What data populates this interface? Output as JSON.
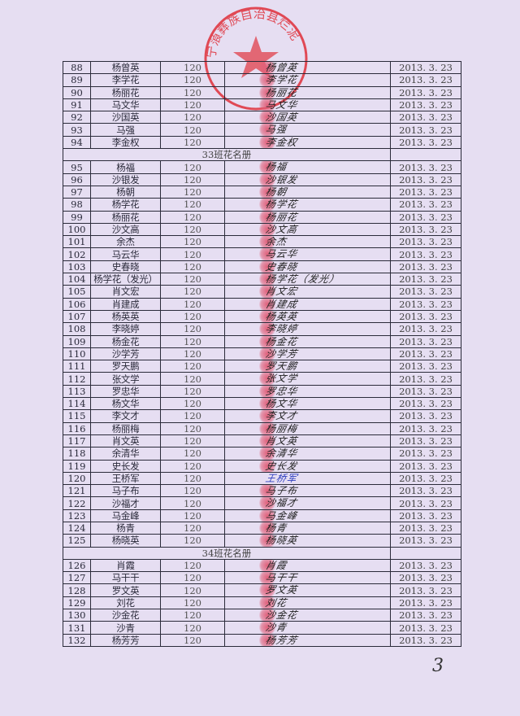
{
  "stamp": {
    "text": "宁蒗彝族自治县烂泥",
    "color": "#e0303a"
  },
  "page_number": "3",
  "amount_default": "120",
  "date_default": "2013. 3. 23",
  "rows": [
    {
      "no": "88",
      "name": "杨曾英"
    },
    {
      "no": "89",
      "name": "李学花"
    },
    {
      "no": "90",
      "name": "杨丽花"
    },
    {
      "no": "91",
      "name": "马文华"
    },
    {
      "no": "92",
      "name": "沙国英"
    },
    {
      "no": "93",
      "name": "马强"
    },
    {
      "no": "94",
      "name": "李金权"
    },
    {
      "section": "33班花名册"
    },
    {
      "no": "95",
      "name": "杨福"
    },
    {
      "no": "96",
      "name": "沙银发"
    },
    {
      "no": "97",
      "name": "杨朝"
    },
    {
      "no": "98",
      "name": "杨学花"
    },
    {
      "no": "99",
      "name": "杨丽花"
    },
    {
      "no": "100",
      "name": "沙文高"
    },
    {
      "no": "101",
      "name": "余杰"
    },
    {
      "no": "102",
      "name": "马云华"
    },
    {
      "no": "103",
      "name": "史春晓"
    },
    {
      "no": "104",
      "name": "杨学花（发光）"
    },
    {
      "no": "105",
      "name": "肖文宏"
    },
    {
      "no": "106",
      "name": "肖建成"
    },
    {
      "no": "107",
      "name": "杨英英"
    },
    {
      "no": "108",
      "name": "李晓婷"
    },
    {
      "no": "109",
      "name": "杨金花"
    },
    {
      "no": "110",
      "name": "沙学芳"
    },
    {
      "no": "111",
      "name": "罗天鹏"
    },
    {
      "no": "112",
      "name": "张文学"
    },
    {
      "no": "113",
      "name": "罗忠华"
    },
    {
      "no": "114",
      "name": "杨文华"
    },
    {
      "no": "115",
      "name": "李文才"
    },
    {
      "no": "116",
      "name": "杨丽梅"
    },
    {
      "no": "117",
      "name": "肖文英"
    },
    {
      "no": "118",
      "name": "余清华"
    },
    {
      "no": "119",
      "name": "史长发"
    },
    {
      "no": "120",
      "name": "王桥军",
      "ink": "blue"
    },
    {
      "no": "121",
      "name": "马子布"
    },
    {
      "no": "122",
      "name": "沙福才"
    },
    {
      "no": "123",
      "name": "马金峰"
    },
    {
      "no": "124",
      "name": "杨青"
    },
    {
      "no": "125",
      "name": "杨晓英"
    },
    {
      "section": "34班花名册"
    },
    {
      "no": "126",
      "name": "肖霞"
    },
    {
      "no": "127",
      "name": "马干干"
    },
    {
      "no": "128",
      "name": "罗文英"
    },
    {
      "no": "129",
      "name": "刘花"
    },
    {
      "no": "130",
      "name": "沙金花"
    },
    {
      "no": "131",
      "name": "沙青"
    },
    {
      "no": "132",
      "name": "杨芳芳"
    }
  ]
}
